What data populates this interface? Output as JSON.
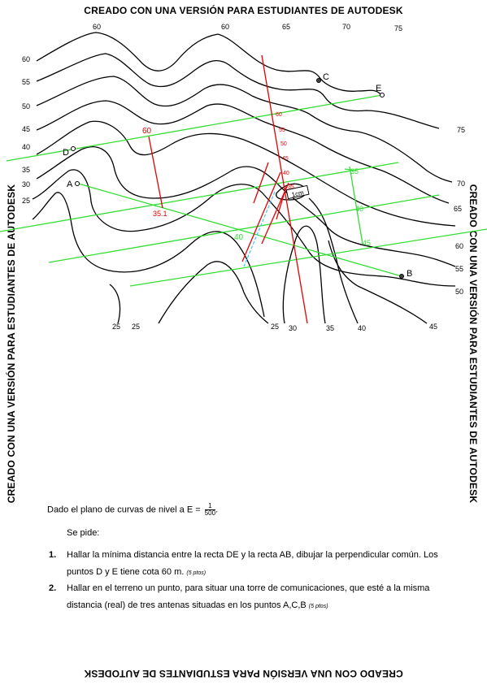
{
  "watermark": "CREADO CON UNA VERSIÓN PARA ESTUDIANTES DE AUTODESK",
  "map": {
    "contour_labels": {
      "top": [
        "60",
        "60",
        "65",
        "70",
        "75"
      ],
      "left": [
        "60",
        "55",
        "50",
        "45",
        "40",
        "35",
        "30",
        "25"
      ],
      "right": [
        "75",
        "70",
        "65",
        "60",
        "55",
        "50"
      ],
      "bottom": [
        "25",
        "25",
        "25",
        "30",
        "35",
        "40",
        "45"
      ]
    },
    "points": [
      "A",
      "B",
      "C",
      "D",
      "E"
    ],
    "red_labels": [
      "60",
      "60",
      "55",
      "50",
      "45",
      "40",
      "35",
      "35.1"
    ],
    "green_labels": [
      "35",
      "40",
      "45",
      "40"
    ],
    "scale_label": "1cm",
    "colors": {
      "contour": "#000000",
      "red": "#e60000",
      "green": "#33dd33",
      "cyan": "#33ccff"
    }
  },
  "text": {
    "intro_prefix": "Dado el plano de curvas de nivel a E = ",
    "scale_num": "1",
    "scale_den": "500",
    "intro_suffix": ".",
    "ask": "Se pide:",
    "item1_num": "1.",
    "item1_text": "Hallar la mínima distancia entre la recta DE y la recta AB, dibujar la perpendicular común. Los puntos D y E tiene cota 60 m.",
    "item1_pts": "(5 ptos)",
    "item2_num": "2.",
    "item2_text": "Hallar en el terreno un punto, para situar una torre de comunicaciones, que esté a la misma distancia (real) de tres antenas situadas en los puntos A,C,B",
    "item2_pts": "(5 ptos)"
  }
}
